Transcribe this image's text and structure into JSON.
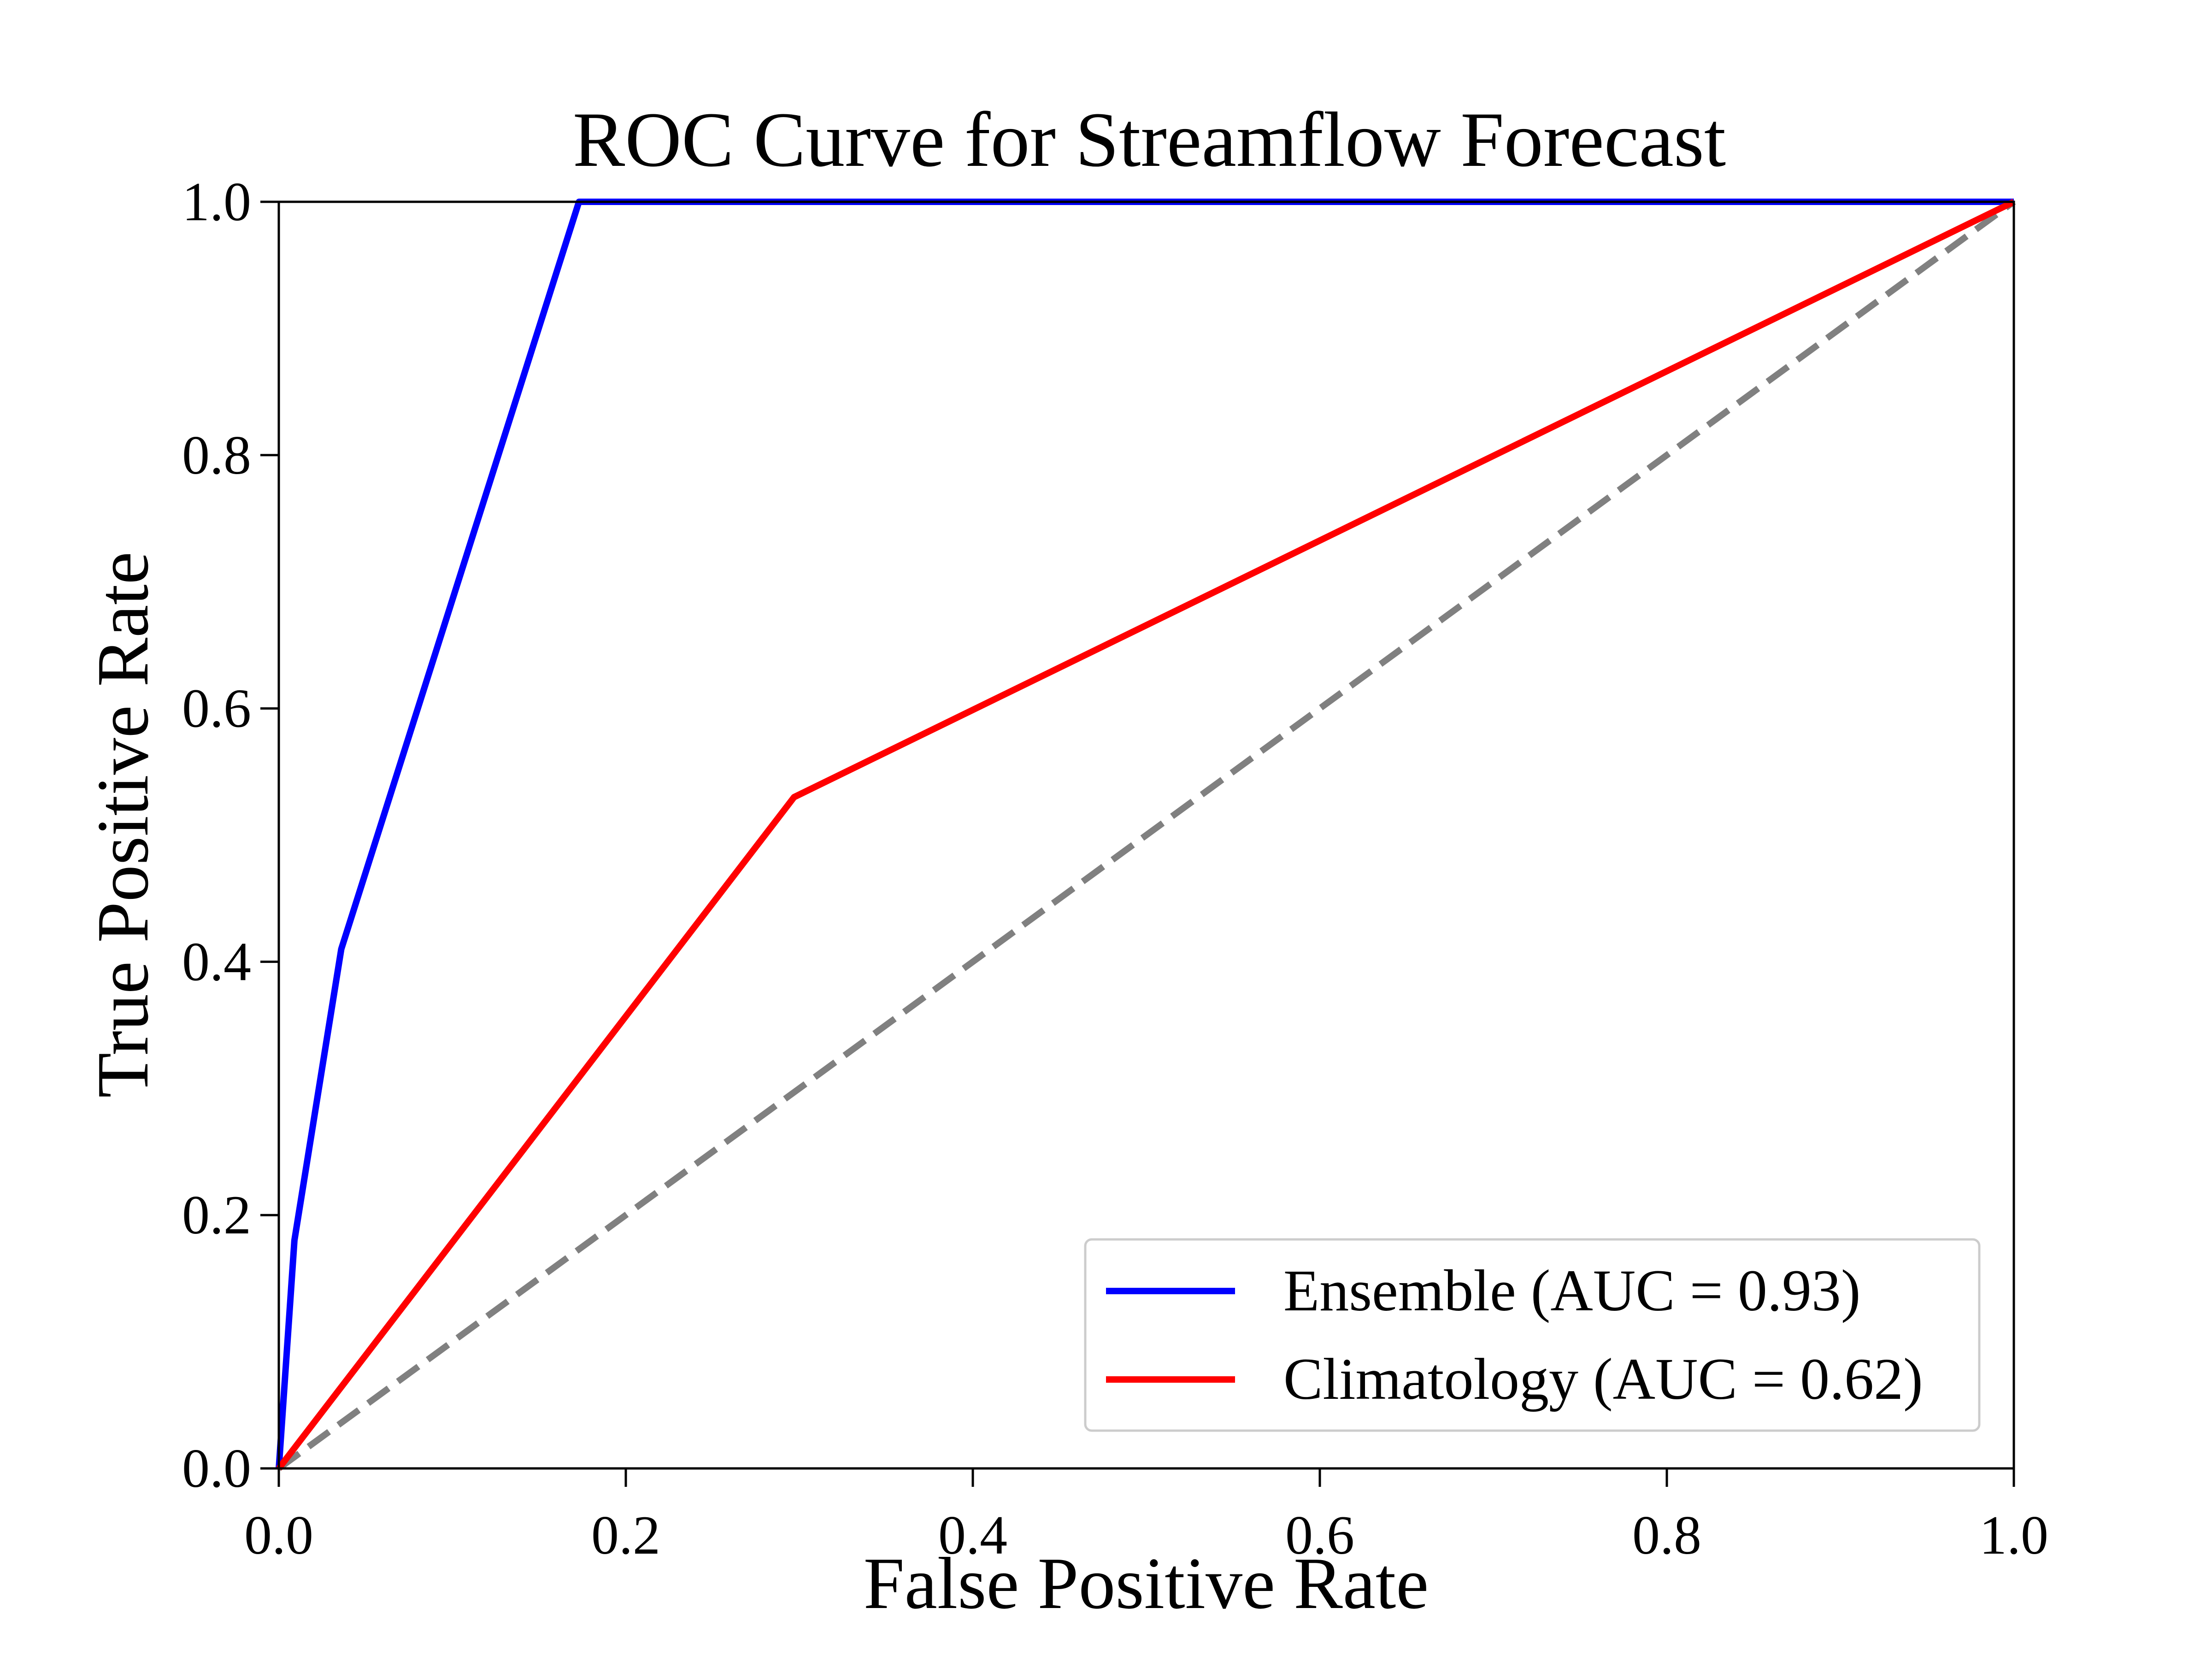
{
  "chart_data": {
    "type": "line",
    "title": "ROC Curve for Streamflow Forecast",
    "xlabel": "False Positive Rate",
    "ylabel": "True Positive Rate",
    "xlim": [
      0.0,
      1.0
    ],
    "ylim": [
      0.0,
      1.0
    ],
    "xticks": [
      "0.0",
      "0.2",
      "0.4",
      "0.6",
      "0.8",
      "1.0"
    ],
    "yticks": [
      "0.0",
      "0.2",
      "0.4",
      "0.6",
      "0.8",
      "1.0"
    ],
    "grid": false,
    "legend_position": "lower-right",
    "series": [
      {
        "name": "Ensemble (AUC = 0.93)",
        "color": "#0000ff",
        "style": "solid",
        "x": [
          0.0,
          0.009,
          0.036,
          0.173,
          1.0
        ],
        "y": [
          0.0,
          0.18,
          0.41,
          1.0,
          1.0
        ]
      },
      {
        "name": "Climatology (AUC = 0.62)",
        "color": "#ff0000",
        "style": "solid",
        "x": [
          0.0,
          0.297,
          1.0
        ],
        "y": [
          0.0,
          0.53,
          1.0
        ]
      }
    ],
    "reference_line": {
      "color": "#808080",
      "style": "dashed",
      "x": [
        0.0,
        1.0
      ],
      "y": [
        0.0,
        1.0
      ]
    }
  }
}
